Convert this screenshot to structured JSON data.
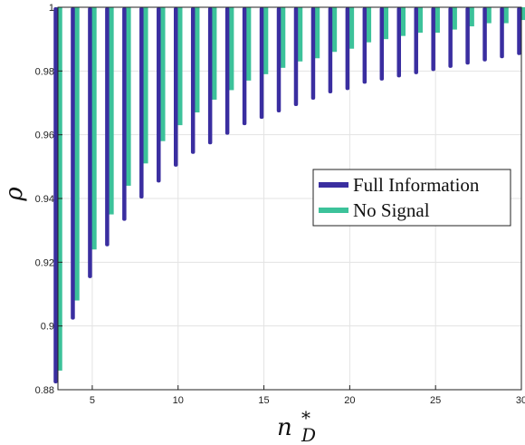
{
  "chart_data": {
    "type": "bar",
    "xlabel": "n_D*",
    "ylabel": "ρ",
    "xlim": [
      3,
      30
    ],
    "ylim": [
      0.88,
      1.0
    ],
    "xticks": [
      5,
      10,
      15,
      20,
      25,
      30
    ],
    "yticks": [
      0.88,
      0.9,
      0.92,
      0.94,
      0.96,
      0.98,
      1
    ],
    "ytick_labels": [
      "0.88",
      "0.9",
      "0.92",
      "0.94",
      "0.96",
      "0.98",
      "1"
    ],
    "grid": true,
    "legend_position": "center-right",
    "x": [
      3,
      4,
      5,
      6,
      7,
      8,
      9,
      10,
      11,
      12,
      13,
      14,
      15,
      16,
      17,
      18,
      19,
      20,
      21,
      22,
      23,
      24,
      25,
      26,
      27,
      28,
      29,
      30
    ],
    "series": [
      {
        "name": "Full Information",
        "color": "#3a2ea0",
        "values": [
          0.882,
          0.902,
          0.915,
          0.925,
          0.933,
          0.94,
          0.945,
          0.95,
          0.954,
          0.957,
          0.96,
          0.963,
          0.965,
          0.967,
          0.969,
          0.971,
          0.973,
          0.974,
          0.976,
          0.977,
          0.978,
          0.979,
          0.98,
          0.981,
          0.982,
          0.983,
          0.984,
          0.985
        ]
      },
      {
        "name": "No Signal",
        "color": "#3cc29a",
        "values": [
          0.886,
          0.908,
          0.924,
          0.935,
          0.944,
          0.951,
          0.958,
          0.963,
          0.967,
          0.971,
          0.974,
          0.977,
          0.979,
          0.981,
          0.983,
          0.984,
          0.986,
          0.987,
          0.989,
          0.99,
          0.991,
          0.992,
          0.992,
          0.993,
          0.994,
          0.995,
          0.995,
          0.996
        ]
      }
    ]
  }
}
